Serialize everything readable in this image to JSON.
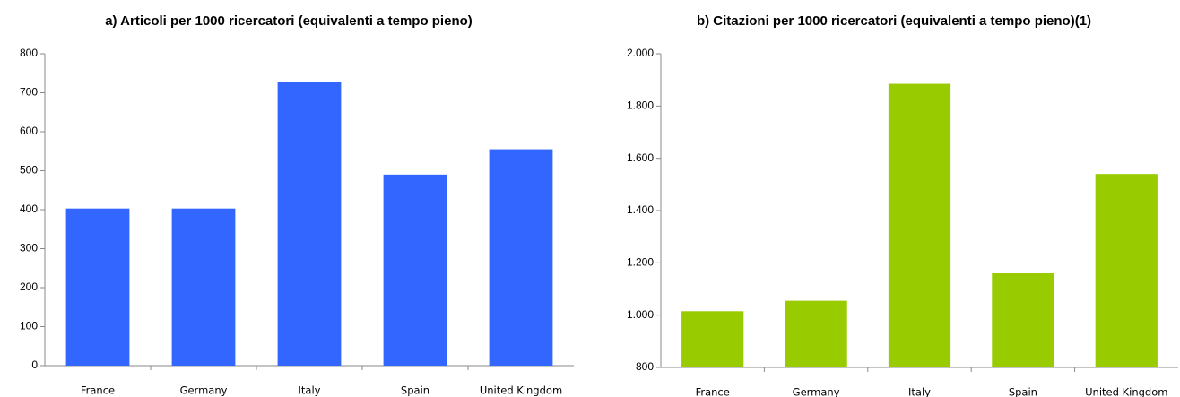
{
  "chart_data": [
    {
      "type": "bar",
      "title": "a) Articoli per 1000 ricercatori (equivalenti a tempo pieno)",
      "categories": [
        "France",
        "Germany",
        "Italy",
        "Spain",
        "United Kingdom"
      ],
      "values": [
        403,
        403,
        728,
        490,
        555
      ],
      "color": "#3366ff",
      "ylim": [
        0,
        800
      ],
      "yticks": [
        0,
        100,
        200,
        300,
        400,
        500,
        600,
        700,
        800
      ]
    },
    {
      "type": "bar",
      "title": "b) Citazioni per 1000 ricercatori (equivalenti a tempo pieno)(1)",
      "categories": [
        "France",
        "Germany",
        "Italy",
        "Spain",
        "United Kingdom"
      ],
      "values": [
        1015,
        1055,
        1885,
        1160,
        1540
      ],
      "color": "#99cc00",
      "ylim": [
        800,
        2000
      ],
      "yticks": [
        800,
        {
          "value": 1000,
          "label": "1.000"
        },
        {
          "value": 1200,
          "label": "1.200"
        },
        {
          "value": 1400,
          "label": "1.400"
        },
        {
          "value": 1600,
          "label": "1.600"
        },
        {
          "value": 1800,
          "label": "1.800"
        },
        {
          "value": 2000,
          "label": "2.000"
        }
      ]
    }
  ]
}
